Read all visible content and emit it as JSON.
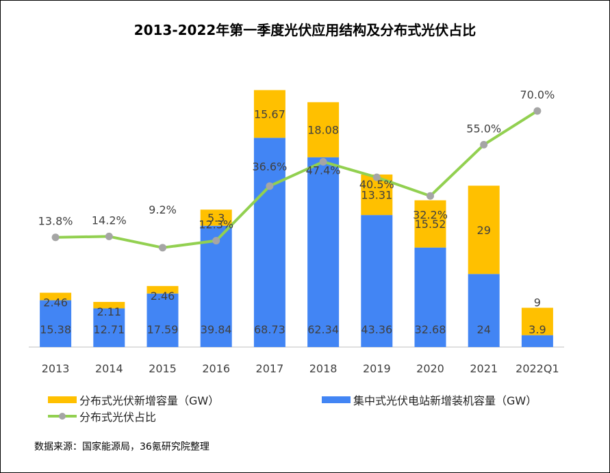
{
  "chart_data": {
    "type": "bar+line",
    "title": "2013-2022年第一季度光伏应用结构及分布式光伏占比",
    "categories": [
      "2013",
      "2014",
      "2015",
      "2016",
      "2017",
      "2018",
      "2019",
      "2020",
      "2021",
      "2022Q1"
    ],
    "series": [
      {
        "name": "集中式光伏电站新增装机容量（GW）",
        "kind": "bar",
        "stack": "bottom",
        "color": "#4285F4",
        "values": [
          15.38,
          12.71,
          17.59,
          39.84,
          68.73,
          62.34,
          43.36,
          32.68,
          24,
          3.9
        ],
        "labels": [
          "15.38",
          "12.71",
          "17.59",
          "39.84",
          "68.73",
          "62.34",
          "43.36",
          "32.68",
          "24",
          "3.9"
        ]
      },
      {
        "name": "分布式光伏新增容量（GW）",
        "kind": "bar",
        "stack": "top",
        "color": "#FFC000",
        "values": [
          2.46,
          2.11,
          2.46,
          5.3,
          15.67,
          18.08,
          13.31,
          15.52,
          29,
          9
        ],
        "labels": [
          "2.46",
          "2.11",
          "2.46",
          "5.3",
          "15.67",
          "18.08",
          "13.31",
          "15.52",
          "29",
          "9"
        ]
      },
      {
        "name": "分布式光伏占比",
        "kind": "line",
        "color": "#92D050",
        "marker_color": "#A5A5A5",
        "values": [
          13.8,
          14.2,
          9.2,
          12.3,
          36.6,
          47.4,
          40.5,
          32.2,
          55.0,
          70.0
        ],
        "labels": [
          "13.8%",
          "14.2%",
          "9.2%",
          "12.3%",
          "36.6%",
          "47.4%",
          "40.5%",
          "32.2%",
          "55.0%",
          "70.0%"
        ]
      }
    ],
    "bar_axis_range": [
      0,
      96
    ],
    "line_axis_range": [
      -35,
      95
    ],
    "grid": false,
    "legend_position": "bottom"
  },
  "legend": {
    "distributed_label": "分布式光伏新增容量（GW）",
    "centralized_label": "集中式光伏电站新增装机容量（GW）",
    "ratio_label": "分布式光伏占比"
  },
  "source": "数据来源：国家能源局，36氪研究院整理"
}
